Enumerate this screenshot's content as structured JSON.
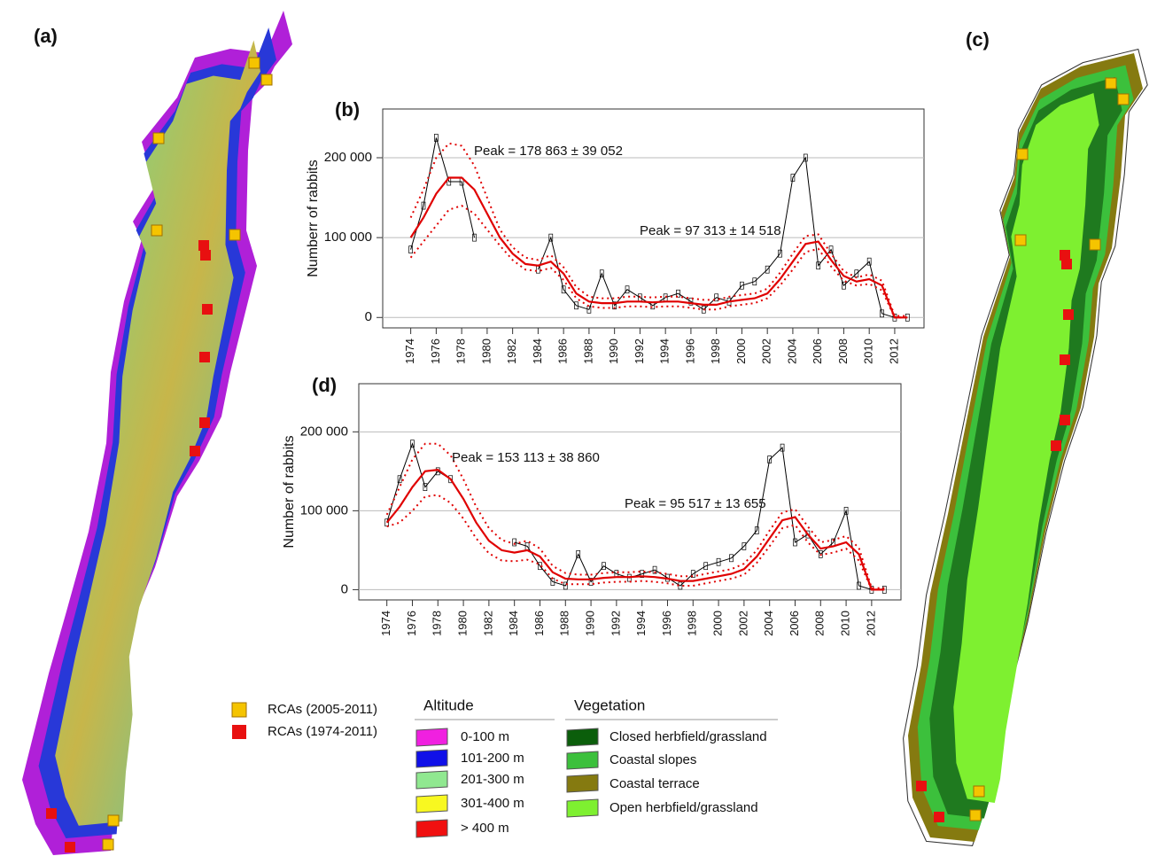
{
  "panels": [
    "(a)",
    "(c)"
  ],
  "legend": {
    "sites": [
      "RCAs (2005-2011)",
      "RCAs (1974-2011)"
    ],
    "altitude": {
      "title": "Altitude",
      "items": [
        "0-100 m",
        "101-200 m",
        "201-300 m",
        "301-400 m",
        "> 400 m"
      ]
    },
    "vegetation": {
      "title": "Vegetation",
      "items": [
        "Closed herbfield/grassland",
        "Coastal slopes",
        "Coastal terrace",
        "Open herbfield/grassland"
      ]
    }
  },
  "chart_data": [
    {
      "type": "line",
      "label": "(b)",
      "ylabel": "Numberr of rabbits",
      "annotations": [
        "Peak = 178 863 ± 39 052",
        "Peak = 97 313 ± 14 518"
      ],
      "x": [
        1974,
        1975,
        1976,
        1977,
        1978,
        1979,
        1980,
        1981,
        1982,
        1983,
        1984,
        1985,
        1986,
        1987,
        1988,
        1989,
        1990,
        1991,
        1992,
        1993,
        1994,
        1995,
        1996,
        1997,
        1998,
        1999,
        2000,
        2001,
        2002,
        2003,
        2004,
        2005,
        2006,
        2007,
        2008,
        2009,
        2010,
        2011,
        2012,
        2013
      ],
      "series": [
        {
          "color": "#000000",
          "markers": true,
          "values": [
            85000,
            140000,
            225000,
            170000,
            170000,
            100000,
            null,
            null,
            null,
            null,
            60000,
            100000,
            35000,
            15000,
            10000,
            55000,
            15000,
            35000,
            25000,
            15000,
            25000,
            30000,
            20000,
            10000,
            25000,
            20000,
            40000,
            45000,
            60000,
            80000,
            175000,
            200000,
            65000,
            85000,
            40000,
            55000,
            70000,
            5000,
            0,
            0
          ]
        },
        {
          "color": "#e00000",
          "style": "dotted",
          "values": [
            125000,
            160000,
            200000,
            218000,
            215000,
            190000,
            150000,
            110000,
            88000,
            75000,
            72000,
            78000,
            63000,
            38000,
            26000,
            24000,
            24000,
            26000,
            26000,
            25000,
            26000,
            26000,
            24000,
            22000,
            22000,
            26000,
            28000,
            30000,
            36000,
            56000,
            80000,
            102000,
            104000,
            80000,
            58000,
            50000,
            54000,
            46000,
            2000,
            2000
          ]
        },
        {
          "color": "#e00000",
          "style": "dotted",
          "values": [
            75000,
            95000,
            115000,
            135000,
            140000,
            130000,
            110000,
            90000,
            72000,
            60000,
            58000,
            62000,
            47000,
            24000,
            14000,
            12000,
            12000,
            14000,
            14000,
            13000,
            14000,
            14000,
            12000,
            10000,
            10000,
            14000,
            16000,
            18000,
            24000,
            40000,
            60000,
            82000,
            86000,
            64000,
            46000,
            40000,
            42000,
            34000,
            0,
            0
          ]
        },
        {
          "color": "#e00000",
          "style": "solid",
          "values": [
            100000,
            125000,
            155000,
            175000,
            175000,
            160000,
            130000,
            100000,
            80000,
            67000,
            65000,
            70000,
            55000,
            30000,
            20000,
            18000,
            18000,
            20000,
            20000,
            19000,
            20000,
            20000,
            18000,
            16000,
            16000,
            20000,
            22000,
            24000,
            30000,
            48000,
            70000,
            92000,
            95000,
            72000,
            52000,
            45000,
            48000,
            40000,
            0,
            0
          ]
        }
      ],
      "xlim": [
        1971.8,
        2014.3
      ],
      "xticks": [
        1974,
        1976,
        1978,
        1980,
        1982,
        1984,
        1986,
        1988,
        1990,
        1992,
        1994,
        1996,
        1998,
        2000,
        2002,
        2004,
        2006,
        2008,
        2010,
        2012
      ],
      "ylim": [
        -13000,
        261000
      ],
      "yticks": [
        0,
        {
          "value": 100000,
          "label": "100 000"
        },
        {
          "value": 200000,
          "label": "200 000"
        }
      ],
      "grid": true
    },
    {
      "type": "line",
      "label": "(d)",
      "ylabel": "Number of rabbits",
      "annotations": [
        "Peak = 153 113 ± 38 860",
        "Peak = 95 517 ± 13 655"
      ],
      "x": [
        1974,
        1975,
        1976,
        1977,
        1978,
        1979,
        1980,
        1981,
        1982,
        1983,
        1984,
        1985,
        1986,
        1987,
        1988,
        1989,
        1990,
        1991,
        1992,
        1993,
        1994,
        1995,
        1996,
        1997,
        1998,
        1999,
        2000,
        2001,
        2002,
        2003,
        2004,
        2005,
        2006,
        2007,
        2008,
        2009,
        2010,
        2011,
        2012,
        2013
      ],
      "series": [
        {
          "color": "#000000",
          "markers": true,
          "values": [
            85000,
            140000,
            185000,
            130000,
            150000,
            140000,
            null,
            null,
            null,
            null,
            60000,
            55000,
            30000,
            10000,
            5000,
            45000,
            10000,
            30000,
            20000,
            15000,
            20000,
            25000,
            15000,
            5000,
            20000,
            30000,
            35000,
            40000,
            55000,
            75000,
            165000,
            180000,
            60000,
            70000,
            45000,
            60000,
            100000,
            5000,
            0,
            0
          ]
        },
        {
          "color": "#e00000",
          "style": "dotted",
          "values": [
            95000,
            130000,
            165000,
            185000,
            185000,
            170000,
            140000,
            105000,
            78000,
            63000,
            58000,
            62000,
            52000,
            30000,
            21000,
            19000,
            19000,
            21000,
            22000,
            22000,
            23000,
            22000,
            20000,
            17000,
            17000,
            20000,
            23000,
            26000,
            33000,
            50000,
            75000,
            98000,
            102000,
            80000,
            60000,
            63000,
            68000,
            53000,
            2000,
            2000
          ]
        },
        {
          "color": "#e00000",
          "style": "dotted",
          "values": [
            80000,
            85000,
            100000,
            118000,
            120000,
            110000,
            90000,
            65000,
            46000,
            37000,
            36000,
            38000,
            32000,
            14000,
            7000,
            7000,
            7000,
            9000,
            10000,
            10000,
            11000,
            10000,
            8000,
            5000,
            5000,
            8000,
            11000,
            14000,
            19000,
            34000,
            55000,
            78000,
            82000,
            60000,
            44000,
            47000,
            52000,
            37000,
            0,
            0
          ]
        },
        {
          "color": "#e00000",
          "style": "solid",
          "values": [
            85000,
            105000,
            130000,
            150000,
            152000,
            140000,
            115000,
            85000,
            62000,
            50000,
            47000,
            50000,
            42000,
            22000,
            14000,
            13000,
            13000,
            15000,
            16000,
            16000,
            17000,
            16000,
            14000,
            11000,
            11000,
            14000,
            17000,
            20000,
            26000,
            42000,
            65000,
            88000,
            92000,
            70000,
            52000,
            55000,
            60000,
            45000,
            0,
            0
          ]
        }
      ],
      "xlim": [
        1971.8,
        2014.3
      ],
      "xticks": [
        1974,
        1976,
        1978,
        1980,
        1982,
        1984,
        1986,
        1988,
        1990,
        1992,
        1994,
        1996,
        1998,
        2000,
        2002,
        2004,
        2006,
        2008,
        2010,
        2012
      ],
      "ylim": [
        -13000,
        261000
      ],
      "yticks": [
        0,
        {
          "value": 100000,
          "label": "100 000"
        },
        {
          "value": 200000,
          "label": "200 000"
        }
      ],
      "grid": true
    }
  ]
}
